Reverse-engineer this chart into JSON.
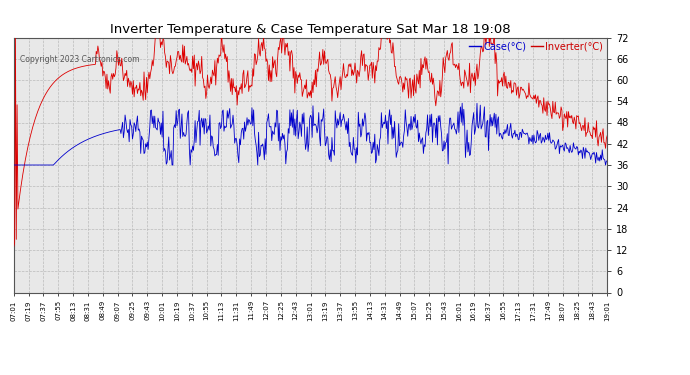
{
  "title": "Inverter Temperature & Case Temperature Sat Mar 18 19:08",
  "copyright": "Copyright 2023 Cartronics.com",
  "legend_case_label": "Case(°C)",
  "legend_case_color": "#0000cc",
  "legend_inverter_label": "Inverter(°C)",
  "legend_inverter_color": "#cc0000",
  "case_line_color": "#dd0000",
  "inverter_line_color": "#0000cc",
  "bg_color": "#ffffff",
  "plot_bg_color": "#e8e8e8",
  "grid_color": "#bbbbbb",
  "ylim": [
    0,
    72
  ],
  "yticks": [
    0.0,
    6.0,
    12.0,
    18.0,
    24.0,
    30.0,
    36.0,
    42.0,
    48.0,
    54.0,
    60.0,
    66.0,
    72.0
  ],
  "tick_labels": [
    "07:01",
    "07:19",
    "07:37",
    "07:55",
    "08:13",
    "08:31",
    "08:49",
    "09:07",
    "09:25",
    "09:43",
    "10:01",
    "10:19",
    "10:37",
    "10:55",
    "11:13",
    "11:31",
    "11:49",
    "12:07",
    "12:25",
    "12:43",
    "13:01",
    "13:19",
    "13:37",
    "13:55",
    "14:13",
    "14:31",
    "14:49",
    "15:07",
    "15:25",
    "15:43",
    "16:01",
    "16:19",
    "16:37",
    "16:55",
    "17:13",
    "17:31",
    "17:49",
    "18:07",
    "18:25",
    "18:43",
    "19:01"
  ]
}
